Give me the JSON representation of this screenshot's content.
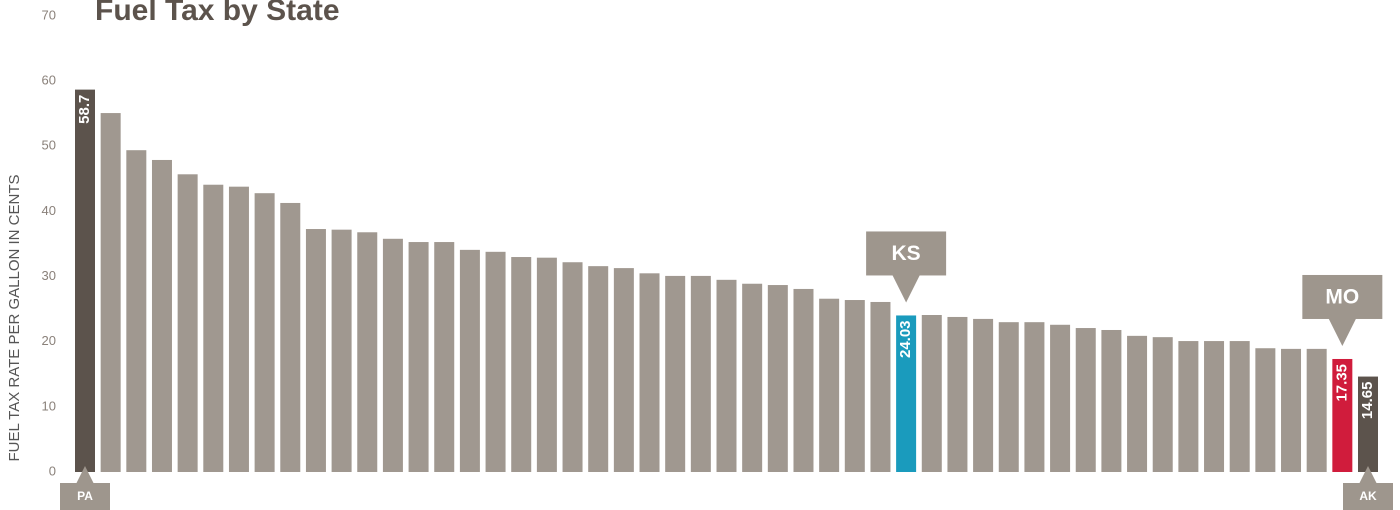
{
  "chart_data": {
    "type": "bar",
    "title": "Fuel Tax by State",
    "y_label": "FUEL TAX RATE PER GALLON IN CENTS",
    "categories": [
      "PA",
      null,
      null,
      null,
      null,
      null,
      null,
      null,
      null,
      null,
      null,
      null,
      null,
      null,
      null,
      null,
      null,
      null,
      null,
      null,
      null,
      null,
      null,
      null,
      null,
      null,
      null,
      null,
      null,
      null,
      null,
      null,
      "KS",
      null,
      null,
      null,
      null,
      null,
      null,
      null,
      null,
      null,
      null,
      null,
      null,
      null,
      null,
      null,
      null,
      "MO",
      "AK"
    ],
    "values": [
      58.7,
      55.1,
      49.4,
      47.9,
      45.7,
      44.1,
      43.8,
      42.8,
      41.3,
      37.3,
      37.2,
      36.8,
      35.8,
      35.3,
      35.3,
      34.1,
      33.8,
      33.0,
      32.9,
      32.2,
      31.6,
      31.3,
      30.5,
      30.1,
      30.1,
      29.5,
      28.9,
      28.7,
      28.1,
      26.6,
      26.4,
      26.1,
      24.03,
      24.1,
      23.8,
      23.5,
      23.0,
      23.0,
      22.6,
      22.1,
      21.8,
      20.9,
      20.7,
      20.1,
      20.1,
      20.1,
      19.0,
      18.9,
      18.9,
      17.35,
      14.65
    ],
    "value_labels": [
      "58.7",
      null,
      null,
      null,
      null,
      null,
      null,
      null,
      null,
      null,
      null,
      null,
      null,
      null,
      null,
      null,
      null,
      null,
      null,
      null,
      null,
      null,
      null,
      null,
      null,
      null,
      null,
      null,
      null,
      null,
      null,
      null,
      "24.03",
      null,
      null,
      null,
      null,
      null,
      null,
      null,
      null,
      null,
      null,
      null,
      null,
      null,
      null,
      null,
      null,
      "17.35",
      "14.65"
    ],
    "colors": [
      "#5c534c",
      "#a09890",
      "#a09890",
      "#a09890",
      "#a09890",
      "#a09890",
      "#a09890",
      "#a09890",
      "#a09890",
      "#a09890",
      "#a09890",
      "#a09890",
      "#a09890",
      "#a09890",
      "#a09890",
      "#a09890",
      "#a09890",
      "#a09890",
      "#a09890",
      "#a09890",
      "#a09890",
      "#a09890",
      "#a09890",
      "#a09890",
      "#a09890",
      "#a09890",
      "#a09890",
      "#a09890",
      "#a09890",
      "#a09890",
      "#a09890",
      "#a09890",
      "#1a9bbd",
      "#a09890",
      "#a09890",
      "#a09890",
      "#a09890",
      "#a09890",
      "#a09890",
      "#a09890",
      "#a09890",
      "#a09890",
      "#a09890",
      "#a09890",
      "#a09890",
      "#a09890",
      "#a09890",
      "#a09890",
      "#a09890",
      "#d01c3c",
      "#5c534c"
    ],
    "ylim": [
      0,
      70
    ],
    "yticks": [
      0,
      10,
      20,
      30,
      40,
      50,
      60,
      70
    ],
    "grid": false
  }
}
